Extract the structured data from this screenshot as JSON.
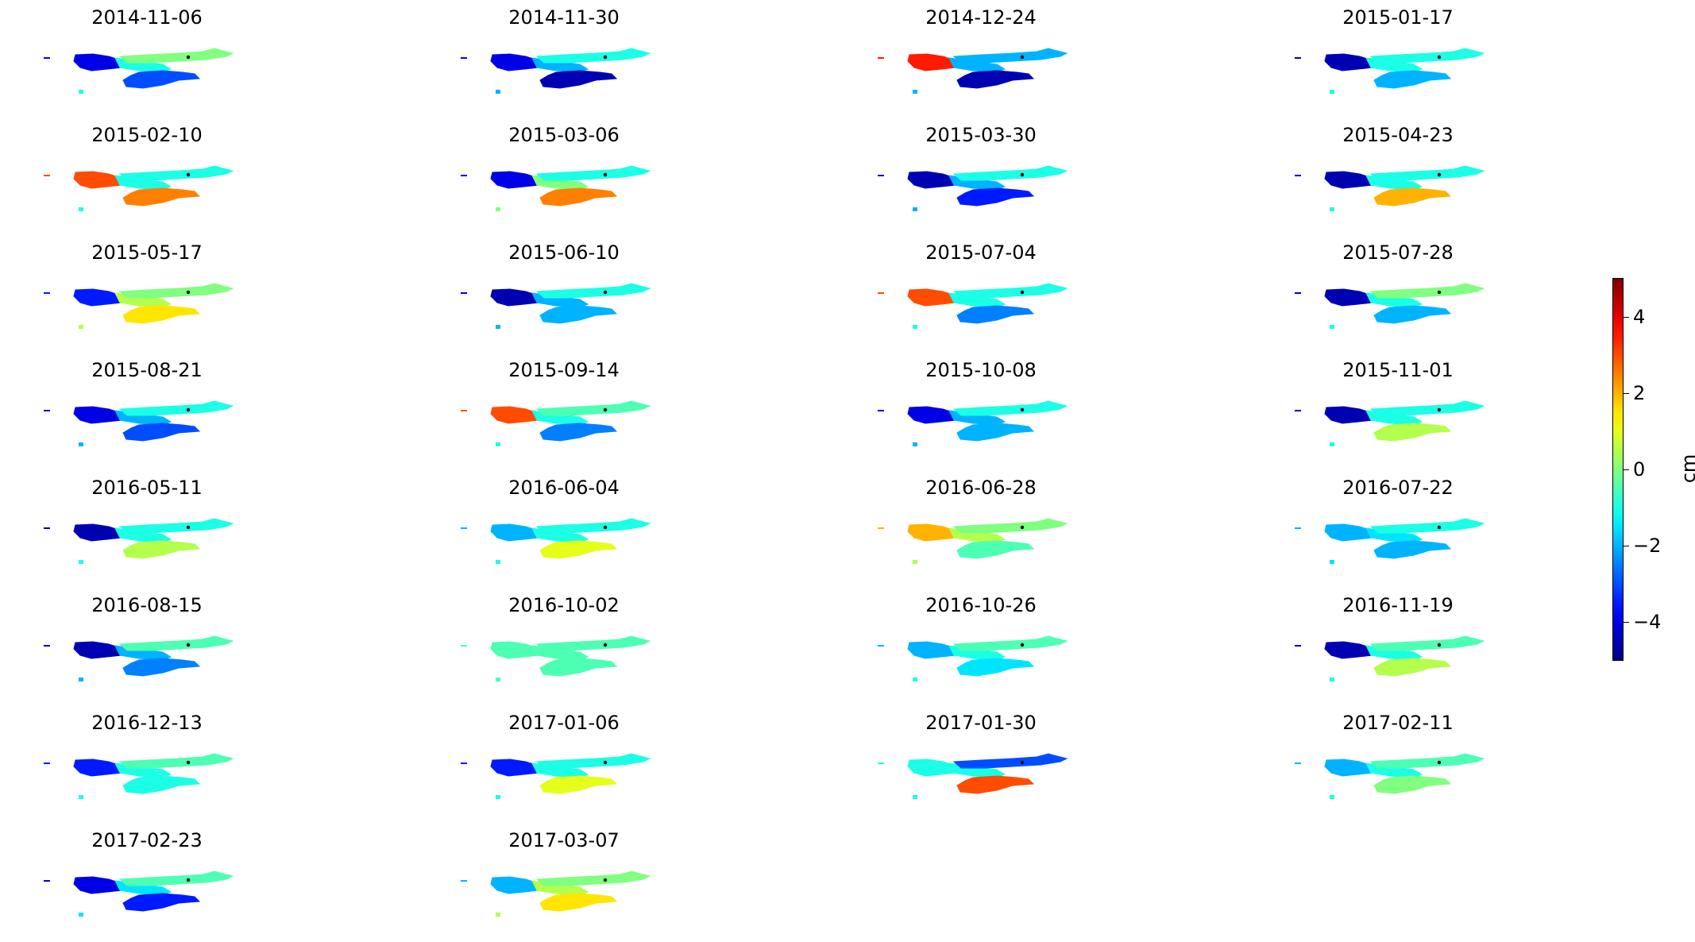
{
  "chart_data": {
    "type": "heatmap",
    "colormap": "jet",
    "color_range": [
      -5,
      5
    ],
    "colorbar": {
      "ticks": [
        4,
        2,
        0,
        -2,
        -4
      ],
      "tick_labels": [
        "4",
        "2",
        "0",
        "−2",
        "−4"
      ],
      "unit": "cm"
    },
    "panels": [
      {
        "date": "2014-11-06",
        "mean": -1.0,
        "west": -4.0,
        "east": 0.0,
        "south": -3.0
      },
      {
        "date": "2014-11-30",
        "mean": -2.0,
        "west": -4.0,
        "east": -1.0,
        "south": -4.5
      },
      {
        "date": "2014-12-24",
        "mean": -2.0,
        "west": 3.5,
        "east": -2.0,
        "south": -4.5
      },
      {
        "date": "2015-01-17",
        "mean": -1.0,
        "west": -4.5,
        "east": -1.0,
        "south": -2.0
      },
      {
        "date": "2015-02-10",
        "mean": -1.0,
        "west": 3.0,
        "east": -1.0,
        "south": 2.5
      },
      {
        "date": "2015-03-06",
        "mean": 0.0,
        "west": -4.0,
        "east": -1.0,
        "south": 2.5
      },
      {
        "date": "2015-03-30",
        "mean": -2.0,
        "west": -4.5,
        "east": -1.0,
        "south": -3.5
      },
      {
        "date": "2015-04-23",
        "mean": -1.0,
        "west": -4.5,
        "east": -1.0,
        "south": 2.0
      },
      {
        "date": "2015-05-17",
        "mean": 0.5,
        "west": -3.5,
        "east": 0.0,
        "south": 1.5
      },
      {
        "date": "2015-06-10",
        "mean": -2.0,
        "west": -4.5,
        "east": -1.0,
        "south": -2.0
      },
      {
        "date": "2015-07-04",
        "mean": -1.0,
        "west": 3.0,
        "east": -1.0,
        "south": -2.5
      },
      {
        "date": "2015-07-28",
        "mean": -1.0,
        "west": -4.5,
        "east": 0.0,
        "south": -2.0
      },
      {
        "date": "2015-08-21",
        "mean": -2.0,
        "west": -4.0,
        "east": -1.0,
        "south": -3.0
      },
      {
        "date": "2015-09-14",
        "mean": -1.0,
        "west": 3.0,
        "east": -0.5,
        "south": -2.5
      },
      {
        "date": "2015-10-08",
        "mean": -2.0,
        "west": -4.0,
        "east": -1.0,
        "south": -2.0
      },
      {
        "date": "2015-11-01",
        "mean": -1.0,
        "west": -4.5,
        "east": -1.0,
        "south": 0.5
      },
      {
        "date": "2016-05-11",
        "mean": -1.0,
        "west": -4.5,
        "east": -1.0,
        "south": 0.5
      },
      {
        "date": "2016-06-04",
        "mean": -1.0,
        "west": -2.0,
        "east": -1.0,
        "south": 1.0
      },
      {
        "date": "2016-06-28",
        "mean": 0.5,
        "west": 2.0,
        "east": 0.0,
        "south": -0.5
      },
      {
        "date": "2016-07-22",
        "mean": -1.5,
        "west": -2.0,
        "east": -1.0,
        "south": -2.0
      },
      {
        "date": "2016-08-15",
        "mean": -2.0,
        "west": -4.5,
        "east": -0.5,
        "south": -2.5
      },
      {
        "date": "2016-10-02",
        "mean": -0.5,
        "west": -0.5,
        "east": -0.5,
        "south": -0.5
      },
      {
        "date": "2016-10-26",
        "mean": -1.0,
        "west": -2.0,
        "east": -0.5,
        "south": -1.5
      },
      {
        "date": "2016-11-19",
        "mean": -1.0,
        "west": -4.5,
        "east": -0.5,
        "south": 0.5
      },
      {
        "date": "2016-12-13",
        "mean": -1.0,
        "west": -3.5,
        "east": -0.5,
        "south": -1.0
      },
      {
        "date": "2017-01-06",
        "mean": -1.0,
        "west": -3.5,
        "east": -1.0,
        "south": 1.0
      },
      {
        "date": "2017-01-30",
        "mean": -1.0,
        "west": -1.0,
        "east": -3.0,
        "south": 3.0
      },
      {
        "date": "2017-02-11",
        "mean": -1.0,
        "west": -2.0,
        "east": -0.5,
        "south": 0.0
      },
      {
        "date": "2017-02-23",
        "mean": -1.5,
        "west": -4.0,
        "east": -0.5,
        "south": -3.5
      },
      {
        "date": "2017-03-07",
        "mean": 0.5,
        "west": -2.0,
        "east": 0.0,
        "south": 1.5
      }
    ]
  }
}
